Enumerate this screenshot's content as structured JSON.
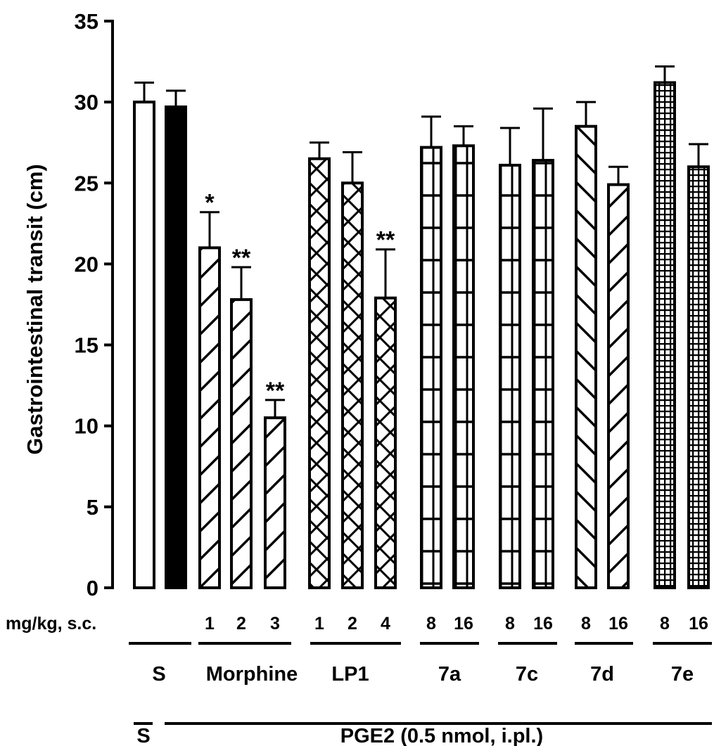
{
  "chart_data": {
    "type": "bar",
    "ylabel": "Gastrointestinal transit (cm)",
    "ylim": [
      0,
      35
    ],
    "yticks": [
      "0",
      "5",
      "10",
      "15",
      "20",
      "25",
      "30",
      "35"
    ],
    "dose_header": "mg/kg, s.c.",
    "bars": [
      {
        "group": "S",
        "dose": "",
        "value": 30.0,
        "error": 1.2,
        "sig": "",
        "pattern": "empty"
      },
      {
        "group": "S",
        "dose": "",
        "value": 29.7,
        "error": 1.0,
        "sig": "",
        "pattern": "solid"
      },
      {
        "group": "Morphine",
        "dose": "1",
        "value": 21.0,
        "error": 2.2,
        "sig": "*",
        "pattern": "diagonal"
      },
      {
        "group": "Morphine",
        "dose": "2",
        "value": 17.8,
        "error": 2.0,
        "sig": "**",
        "pattern": "diagonal"
      },
      {
        "group": "Morphine",
        "dose": "3",
        "value": 10.5,
        "error": 1.1,
        "sig": "**",
        "pattern": "diagonal"
      },
      {
        "group": "LP1",
        "dose": "1",
        "value": 26.5,
        "error": 1.0,
        "sig": "",
        "pattern": "crosshatch"
      },
      {
        "group": "LP1",
        "dose": "2",
        "value": 25.0,
        "error": 1.9,
        "sig": "",
        "pattern": "crosshatch"
      },
      {
        "group": "LP1",
        "dose": "4",
        "value": 17.9,
        "error": 3.0,
        "sig": "**",
        "pattern": "crosshatch"
      },
      {
        "group": "7a",
        "dose": "8",
        "value": 27.2,
        "error": 1.9,
        "sig": "",
        "pattern": "grid"
      },
      {
        "group": "7a",
        "dose": "16",
        "value": 27.3,
        "error": 1.2,
        "sig": "",
        "pattern": "grid"
      },
      {
        "group": "7c",
        "dose": "8",
        "value": 26.1,
        "error": 2.3,
        "sig": "",
        "pattern": "grid"
      },
      {
        "group": "7c",
        "dose": "16",
        "value": 26.4,
        "error": 3.2,
        "sig": "",
        "pattern": "grid"
      },
      {
        "group": "7d",
        "dose": "8",
        "value": 28.5,
        "error": 1.5,
        "sig": "",
        "pattern": "backdiagonal"
      },
      {
        "group": "7d",
        "dose": "16",
        "value": 24.9,
        "error": 1.1,
        "sig": "",
        "pattern": "diagonal"
      },
      {
        "group": "7e",
        "dose": "8",
        "value": 31.2,
        "error": 1.0,
        "sig": "",
        "pattern": "densegrid"
      },
      {
        "group": "7e",
        "dose": "16",
        "value": 26.0,
        "error": 1.4,
        "sig": "",
        "pattern": "densegrid"
      }
    ],
    "group_labels": [
      "S",
      "Morphine",
      "LP1",
      "7a",
      "7c",
      "7d",
      "7e"
    ],
    "bottom_labels": {
      "left": "S",
      "right": "PGE2 (0.5 nmol, i.pl.)"
    }
  }
}
